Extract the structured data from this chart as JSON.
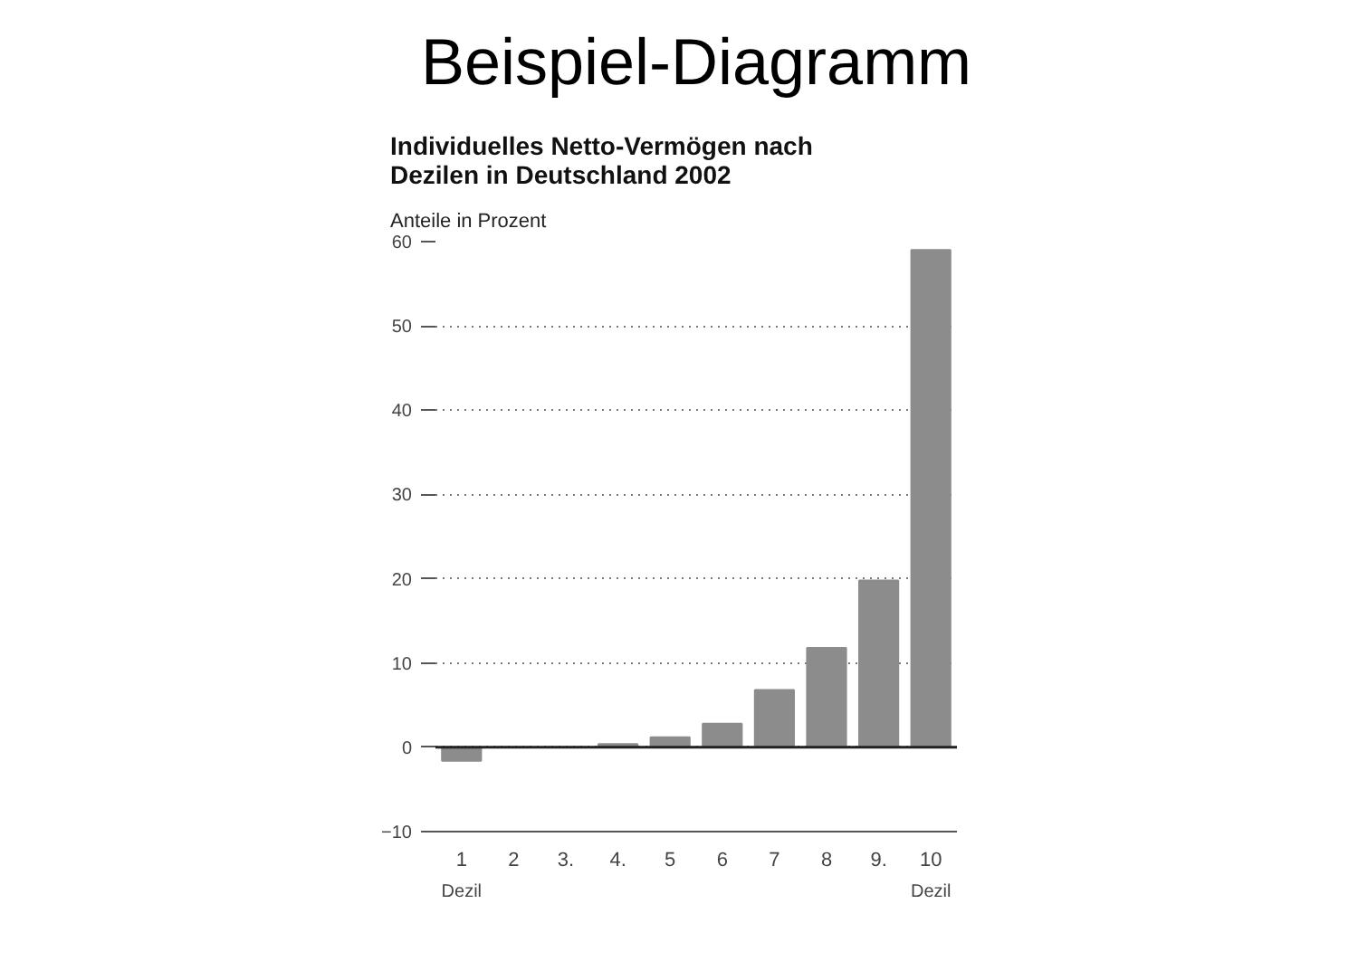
{
  "chart_data": {
    "type": "bar",
    "title": "Beispiel-Diagramm",
    "subtitle": "Individuelles Netto-Vermögen nach Dezilen in Deutschland 2002",
    "ylabel": "Anteile in Prozent",
    "categories": [
      "1",
      "2",
      "3.",
      "4.",
      "5",
      "6",
      "7",
      "8",
      "9.",
      "10"
    ],
    "values": [
      -1.6,
      0,
      0,
      0.4,
      1.2,
      2.8,
      6.8,
      11.8,
      19.8,
      59
    ],
    "color": "#8c8c8c",
    "ylim": [
      -10,
      60
    ],
    "yticks": [
      -10,
      0,
      10,
      20,
      30,
      40,
      50,
      60
    ],
    "grid": "y",
    "annotations": [
      "Dezil",
      "Dezil"
    ]
  }
}
